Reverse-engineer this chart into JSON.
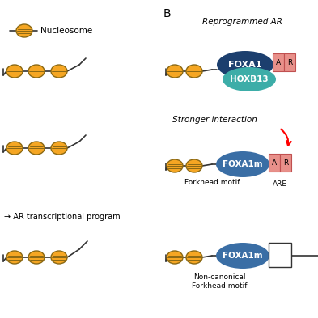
{
  "bg_color": "#ffffff",
  "nucleosome_color": "#F5A623",
  "nucleosome_outline": "#8B6914",
  "foxa1_color": "#1C3F6E",
  "hoxb13_color": "#3DADA8",
  "foxa1m_color": "#3A6EA5",
  "ar_box_color": "#E8908A",
  "ar_box_outline": "#C05050",
  "white_box_color": "#ffffff",
  "white_box_outline": "#333333",
  "dna_color": "#333333",
  "text_nucleosome": "Nucleosome",
  "title_b": "B",
  "text_reprogrammed": "Reprogrammed AR",
  "text_stronger": "Stronger interaction",
  "text_foxa1": "FOXA1",
  "text_hoxb13": "HOXB13",
  "text_foxa1m1": "FOXA1m",
  "text_foxa1m2": "FOXA1m",
  "text_forkhead": "Forkhead motif",
  "text_are": "ARE",
  "text_ar_transcriptional": "→ AR transcriptional program",
  "text_noncanonical": "Non-canonical\nForkhead motif",
  "text_a": "A",
  "text_r": "R"
}
